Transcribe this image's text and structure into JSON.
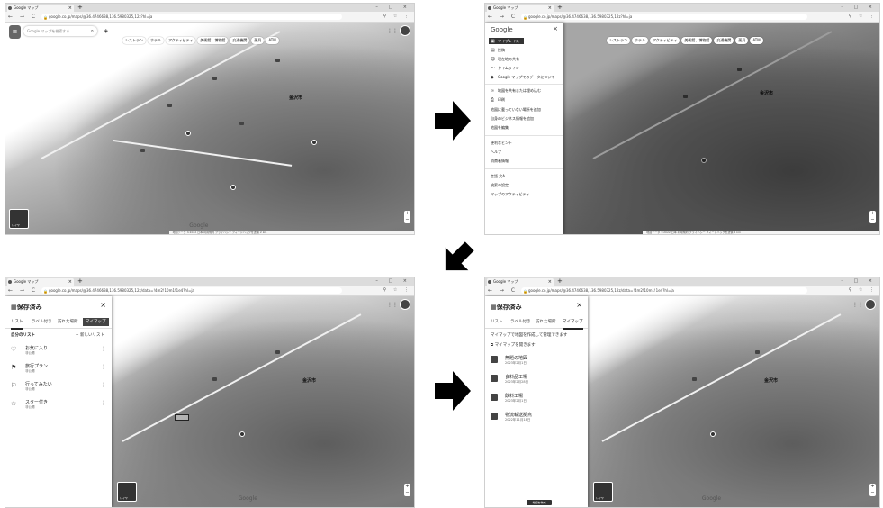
{
  "browser": {
    "tab_title": "Google マップ",
    "tab_close": "×",
    "new_tab": "+",
    "window_controls": "– □ ×",
    "nav_buttons": "← → C",
    "url_1": "google.co.jp/maps/@36.4746638,136.5980325,12z?hl=ja",
    "url_3": "google.co.jp/maps/@36.4746638,136.5980325,12z/data=!4m2!10m1!1e4?hl=ja",
    "toolbar_icons": "⚲ ☆ ⋮"
  },
  "maps": {
    "search_placeholder": "Google マップを検索する",
    "search_icon": "search-icon",
    "directions_icon": "directions-icon",
    "chips": [
      "レストラン",
      "ホテル",
      "アクティビティ",
      "美術館、博物館",
      "交通機関",
      "薬局",
      "ATM"
    ],
    "city_label": "金沢市",
    "layers_label": "レイヤ",
    "google_mark": "Google",
    "zoom_in": "+",
    "zoom_out": "−",
    "footer_text": "地図データ ©2022  日本  利用規約  プライバシー  フィードバックを送信  2 km"
  },
  "side_menu": {
    "logo": "Google",
    "close": "×",
    "items": [
      {
        "icon": "bookmark-icon",
        "label": "マイプレイス",
        "highlighted": true
      },
      {
        "icon": "timeline-icon",
        "label": "投稿"
      },
      {
        "icon": "people-icon",
        "label": "現在地の共有"
      },
      {
        "icon": "line-icon",
        "label": "タイムライン"
      },
      {
        "icon": "shield-icon",
        "label": "Google マップでのデータについて"
      }
    ],
    "items2": [
      {
        "icon": "link-icon",
        "label": "地図を共有または埋め込む"
      },
      {
        "icon": "print-icon",
        "label": "印刷"
      },
      {
        "label": "地図に載っていない場所を追加"
      },
      {
        "label": "自身のビジネス情報を追加"
      },
      {
        "label": "地図を編集"
      }
    ],
    "items3": [
      "便利なヒント",
      "ヘルプ",
      "消費者情報"
    ],
    "items4": [
      "言語 文A",
      "検索の設定",
      "マップのアクティビティ"
    ]
  },
  "saved_panel": {
    "title": "保存済み",
    "close": "×",
    "tabs": [
      "リスト",
      "ラベル付き",
      "訪れた場所",
      "マイマップ"
    ],
    "your_lists": "自分のリスト",
    "new_list": "+ 新しいリスト",
    "lists": [
      {
        "icon": "heart-icon",
        "name": "お気に入り",
        "sub": "非公開"
      },
      {
        "icon": "flag-icon",
        "name": "旅行プラン",
        "sub": "非公開"
      },
      {
        "icon": "flag-outline-icon",
        "name": "行ってみたい",
        "sub": "非公開"
      },
      {
        "icon": "star-icon",
        "name": "スター付き",
        "sub": "非公開"
      }
    ],
    "mymaps_intro": "マイマップで地図を作成して管理できます",
    "open_mymaps": "マイマップを開きます",
    "mymaps": [
      {
        "name": "無題の地図",
        "date": "2023年2月1日"
      },
      {
        "name": "食料品工場",
        "date": "2023年2月28日"
      },
      {
        "name": "飲料工場",
        "date": "2023年2月1日"
      },
      {
        "name": "物流輸送拠点",
        "date": "2022年11月18日"
      }
    ],
    "create_map": "地図を作成"
  },
  "colors": {
    "arrow": "#000000",
    "highlight": "#333333"
  }
}
